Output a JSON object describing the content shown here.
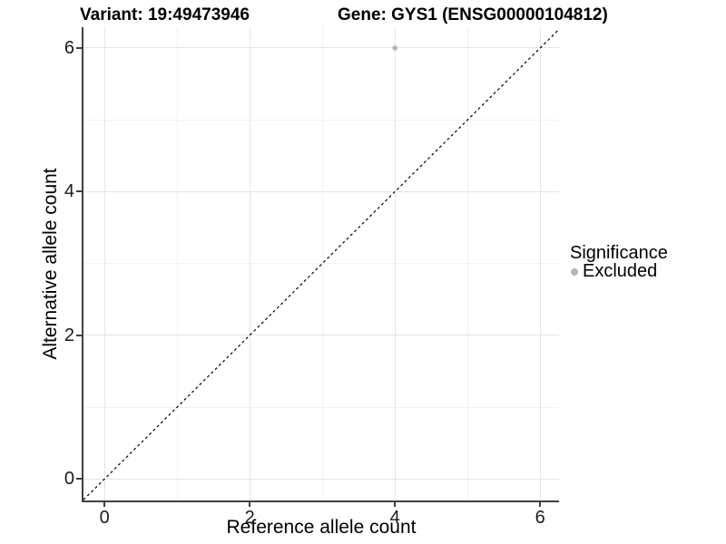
{
  "chart_data": {
    "type": "scatter",
    "titles": {
      "left": "Variant: 19:49473946",
      "right": "Gene: GYS1 (ENSG00000104812)"
    },
    "xlabel": "Reference allele count",
    "ylabel": "Alternative allele count",
    "xlim": [
      -0.29,
      6.26
    ],
    "ylim": [
      -0.3,
      6.29
    ],
    "xticks": [
      0,
      2,
      4,
      6
    ],
    "yticks": [
      0,
      2,
      4,
      6
    ],
    "minor_xticks": [
      1,
      3,
      5
    ],
    "minor_yticks": [
      1,
      3,
      5
    ],
    "grid": true,
    "points": [
      {
        "x": 4,
        "y": 6,
        "series": "Excluded"
      }
    ],
    "identity_line": {
      "slope": 1,
      "intercept": 0,
      "style": "dashed",
      "color": "#000000"
    },
    "legend": {
      "title": "Significance",
      "position": "right",
      "entries": [
        {
          "label": "Excluded",
          "color": "#b3b3b3"
        }
      ]
    },
    "colors": {
      "point": "#b3b3b3",
      "axis": "#404040",
      "grid_major": "#e5e5e5",
      "grid_minor": "#f2f2f2",
      "text": "#000000"
    }
  }
}
